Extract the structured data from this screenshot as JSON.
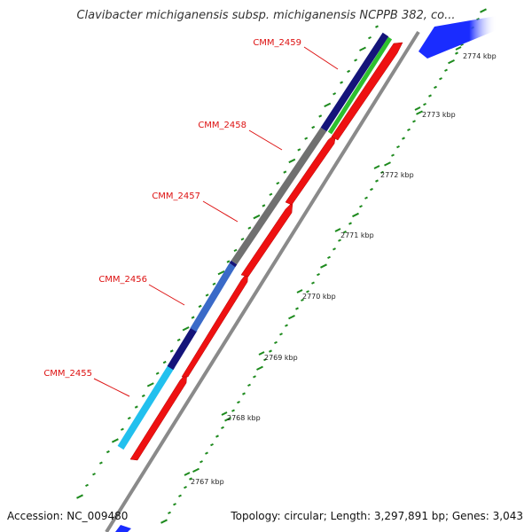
{
  "title": "Clavibacter michiganensis subsp. michiganensis NCPPB 382, co...",
  "footer": {
    "accession": "Accession: NC_009480",
    "topology": "Topology: circular; Length: 3,297,891 bp; Genes: 3,043"
  },
  "colors": {
    "backbone": "#8a8a8a",
    "forward_gene": "#ee1111",
    "neighbor_gene": "#1a2cff",
    "tick": "#1d8a1d",
    "label": "#dd1111",
    "feature_navy": "#14147a",
    "feature_gray": "#707070",
    "feature_green": "#2ec02e",
    "feature_blue": "#3a6ac8",
    "feature_cyan": "#22c0ee"
  },
  "genes": [
    {
      "id": "CMM_2455",
      "label": "CMM_2455"
    },
    {
      "id": "CMM_2456",
      "label": "CMM_2456"
    },
    {
      "id": "CMM_2457",
      "label": "CMM_2457"
    },
    {
      "id": "CMM_2458",
      "label": "CMM_2458"
    },
    {
      "id": "CMM_2459",
      "label": "CMM_2459"
    }
  ],
  "scale": [
    {
      "kbp": 2767,
      "label": "2767 kbp"
    },
    {
      "kbp": 2768,
      "label": "2768 kbp"
    },
    {
      "kbp": 2769,
      "label": "2769 kbp"
    },
    {
      "kbp": 2770,
      "label": "2770 kbp"
    },
    {
      "kbp": 2771,
      "label": "2771 kbp"
    },
    {
      "kbp": 2772,
      "label": "2772 kbp"
    },
    {
      "kbp": 2773,
      "label": "2773 kbp"
    },
    {
      "kbp": 2774,
      "label": "2774 kbp"
    }
  ]
}
